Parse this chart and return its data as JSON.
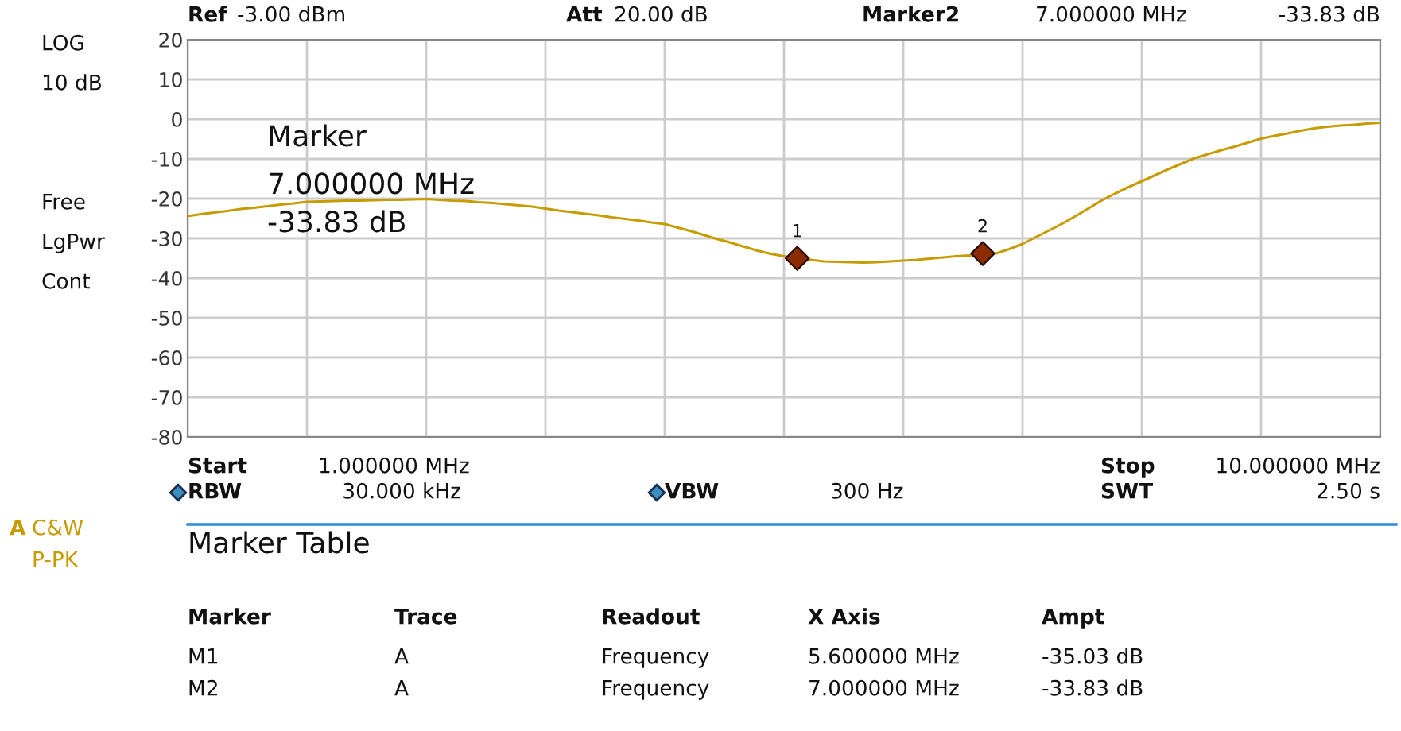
{
  "chart_data": {
    "type": "line",
    "categories": [
      null,
      null,
      null,
      null,
      null,
      null,
      null,
      null,
      null,
      null,
      null,
      null,
      null,
      null,
      null,
      null,
      null,
      null,
      null,
      null,
      null,
      null,
      null,
      null,
      null,
      null,
      null,
      null,
      null,
      null,
      null,
      null,
      null,
      null,
      null,
      null,
      null,
      null,
      null,
      null,
      null,
      null,
      null,
      null,
      null,
      null,
      null,
      null,
      null,
      null,
      null,
      null,
      null,
      null,
      null,
      null,
      null,
      null,
      null,
      null,
      null,
      null,
      null,
      null,
      null,
      null,
      null,
      null,
      null,
      null,
      null,
      null,
      null,
      null,
      null,
      null,
      null,
      null,
      null,
      null,
      null,
      null,
      null,
      null,
      null,
      null,
      null,
      null,
      null,
      null,
      null
    ],
    "ylim": [
      -80,
      20
    ],
    "yticks": [
      -80,
      -70,
      -60,
      -50,
      -40,
      -30,
      -20,
      -10,
      0,
      10,
      20
    ],
    "tick_labels": "y",
    "grid": true,
    "series": [
      {
        "color": "#c89b00",
        "marker": "none",
        "line_style": "solid",
        "values": [
          -24.4,
          -23.9,
          -23.5,
          -23.1,
          -22.6,
          -22.3,
          -21.9,
          -21.5,
          -21.2,
          -20.8,
          -20.7,
          -20.6,
          -20.5,
          -20.5,
          -20.4,
          -20.3,
          -20.3,
          -20.2,
          -20.1,
          -20.3,
          -20.5,
          -20.6,
          -20.9,
          -21.1,
          -21.4,
          -21.7,
          -22.0,
          -22.5,
          -23.0,
          -23.4,
          -23.8,
          -24.2,
          -24.7,
          -25.1,
          -25.5,
          -26.0,
          -26.4,
          -27.3,
          -28.2,
          -29.2,
          -30.2,
          -31.1,
          -32.1,
          -33.1,
          -33.9,
          -34.5,
          -35.0,
          -35.4,
          -35.8,
          -35.9,
          -36.0,
          -36.1,
          -36.0,
          -35.8,
          -35.6,
          -35.4,
          -35.1,
          -34.8,
          -34.5,
          -34.3,
          -33.8,
          -33.8,
          -32.7,
          -31.4,
          -29.7,
          -28.0,
          -26.3,
          -24.4,
          -22.4,
          -20.4,
          -18.7,
          -17.1,
          -15.6,
          -14.1,
          -12.6,
          -11.2,
          -9.8,
          -8.8,
          -7.8,
          -6.9,
          -5.9,
          -4.9,
          -4.2,
          -3.6,
          -2.9,
          -2.3,
          -1.9,
          -1.6,
          -1.4,
          -1.1,
          -0.9
        ]
      },
      {
        "type": "scatter",
        "color": "#8b2c00",
        "marker": "diamond",
        "values": [
          null,
          null,
          null,
          null,
          null,
          null,
          null,
          null,
          null,
          null,
          null,
          null,
          null,
          null,
          null,
          null,
          null,
          null,
          null,
          null,
          null,
          null,
          null,
          null,
          null,
          null,
          null,
          null,
          null,
          null,
          null,
          null,
          null,
          null,
          null,
          null,
          null,
          null,
          null,
          null,
          null,
          null,
          null,
          null,
          null,
          null,
          -35.03,
          null,
          null,
          null,
          null,
          null,
          null,
          null,
          null,
          null,
          null,
          null,
          null,
          null,
          -33.83,
          null,
          null,
          null,
          null,
          null,
          null,
          null,
          null,
          null,
          null,
          null,
          null,
          null,
          null,
          null,
          null,
          null,
          null,
          null,
          null,
          null,
          null,
          null,
          null,
          null,
          null,
          null,
          null,
          null,
          null
        ]
      }
    ],
    "annotations": [
      "LOG",
      "10 dB",
      "Free",
      "LgPwr",
      "Cont",
      "Ref",
      "-3.00 dBm",
      "Att",
      "20.00 dB",
      "Marker2",
      "7.000000 MHz",
      "-33.83 dB",
      "Marker",
      "7.000000 MHz",
      "-33.83 dB",
      "Start",
      "1.000000 MHz",
      "Stop",
      "10.000000 MHz",
      "RBW",
      "30.000 kHz",
      "VBW",
      "300 Hz",
      "SWT",
      "2.50 s",
      "A",
      "C&W",
      "P-PK",
      "Marker Table",
      "Marker",
      "Trace",
      "Readout",
      "X Axis",
      "Ampt",
      "M1",
      "A",
      "Frequency",
      "5.600000 MHz",
      "-35.03 dB",
      "M2",
      "A",
      "Frequency",
      "7.000000 MHz",
      "-33.83 dB",
      "1",
      "2"
    ]
  }
}
